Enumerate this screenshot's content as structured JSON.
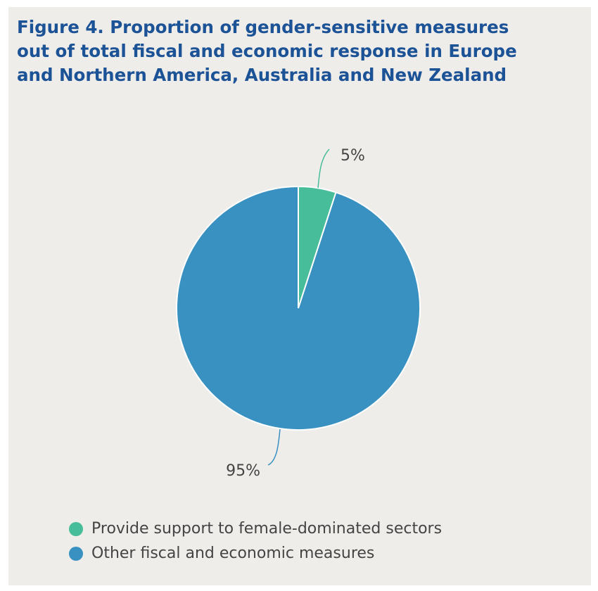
{
  "chart_data": {
    "type": "pie",
    "title": "Figure 4. Proportion of gender-sensitive measures out of total fiscal and economic response in Europe and Northern America, Australia and New Zealand",
    "slices": [
      {
        "label": "Provide support to female-dominated sectors",
        "value": 5,
        "value_label": "5%",
        "color": "#48bd9a"
      },
      {
        "label": "Other fiscal and economic measures",
        "value": 95,
        "value_label": "95%",
        "color": "#3991c1"
      }
    ],
    "legend_position": "bottom-left",
    "start_angle_deg": 0,
    "direction": "clockwise"
  }
}
